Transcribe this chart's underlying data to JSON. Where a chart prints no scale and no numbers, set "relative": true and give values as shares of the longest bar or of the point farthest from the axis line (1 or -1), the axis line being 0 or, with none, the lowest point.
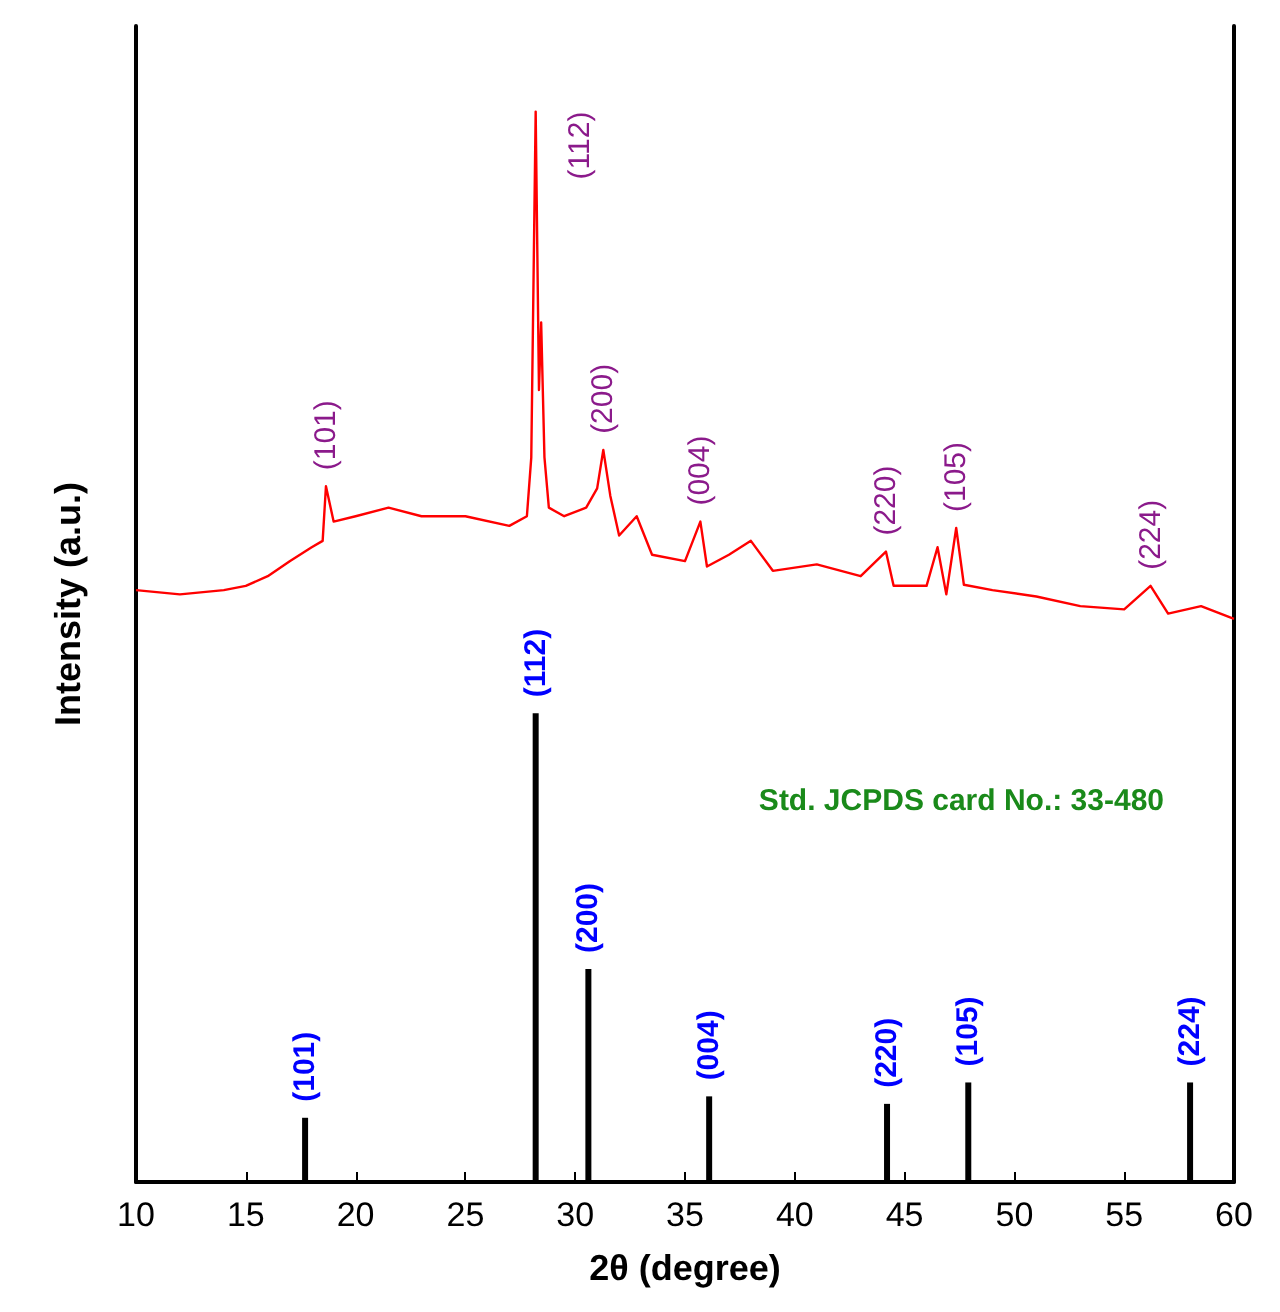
{
  "chart_data": {
    "type": "line",
    "xlabel": "2θ (degree)",
    "ylabel": "Intensity (a.u.)",
    "relative": true,
    "tick_labels": "x",
    "grid": false,
    "xlim": [
      10,
      60
    ],
    "xticks": [
      10,
      15,
      20,
      25,
      30,
      35,
      40,
      45,
      50,
      55,
      60
    ],
    "series": [
      {
        "color": "#ff0000",
        "x": [
          10,
          12,
          14,
          15,
          16,
          17,
          18,
          18.5,
          18.65,
          19,
          20,
          21.5,
          23,
          25,
          27,
          27.8,
          28,
          28.2,
          28.35,
          28.45,
          28.6,
          28.8,
          29.5,
          30.5,
          31,
          31.28,
          31.6,
          32,
          32.8,
          33.5,
          35,
          35.7,
          36,
          37,
          38,
          39,
          41,
          43,
          44.15,
          44.5,
          46,
          46.5,
          46.9,
          47.35,
          47.7,
          49,
          51,
          53,
          55,
          56.2,
          57,
          58.5,
          60
        ],
        "values": [
          0.553,
          0.549,
          0.553,
          0.557,
          0.566,
          0.58,
          0.593,
          0.599,
          0.65,
          0.617,
          0.622,
          0.63,
          0.622,
          0.622,
          0.613,
          0.622,
          0.677,
          1.0,
          0.74,
          0.803,
          0.677,
          0.63,
          0.622,
          0.63,
          0.648,
          0.684,
          0.641,
          0.604,
          0.622,
          0.586,
          0.58,
          0.617,
          0.575,
          0.586,
          0.599,
          0.571,
          0.577,
          0.566,
          0.589,
          0.557,
          0.557,
          0.593,
          0.549,
          0.611,
          0.558,
          0.553,
          0.547,
          0.538,
          0.535,
          0.557,
          0.531,
          0.538,
          0.526
        ]
      },
      {
        "type": "bar",
        "color": "#000000",
        "x": [
          17.7,
          28.2,
          30.6,
          36.1,
          44.2,
          47.9,
          58.0
        ],
        "values": [
          0.06,
          0.438,
          0.199,
          0.08,
          0.073,
          0.093,
          0.093
        ]
      }
    ],
    "annotations": [
      {
        "text": "(101)",
        "x": 18.65,
        "y": 0.65
      },
      {
        "text": "(112)",
        "x": 28.2,
        "y": 1.0
      },
      {
        "text": "(200)",
        "x": 31.28,
        "y": 0.684
      },
      {
        "text": "(004)",
        "x": 35.7,
        "y": 0.617
      },
      {
        "text": "(220)",
        "x": 44.15,
        "y": 0.589
      },
      {
        "text": "(105)",
        "x": 47.35,
        "y": 0.611
      },
      {
        "text": "(224)",
        "x": 56.2,
        "y": 0.557
      },
      {
        "text": "(101)",
        "x": 17.7,
        "y": 0.06
      },
      {
        "text": "(112)",
        "x": 28.2,
        "y": 0.438
      },
      {
        "text": "(200)",
        "x": 30.6,
        "y": 0.199
      },
      {
        "text": "(004)",
        "x": 36.1,
        "y": 0.08
      },
      {
        "text": "(220)",
        "x": 44.2,
        "y": 0.073
      },
      {
        "text": "(105)",
        "x": 47.9,
        "y": 0.093
      },
      {
        "text": "(224)",
        "x": 58.0,
        "y": 0.093
      },
      "Std. JCPDS card No.: 33-480"
    ]
  }
}
